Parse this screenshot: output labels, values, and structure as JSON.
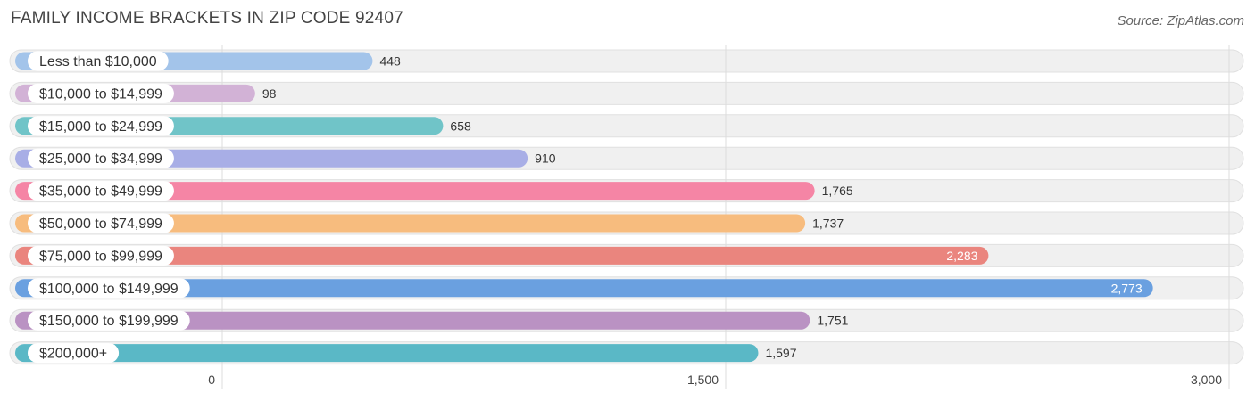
{
  "header": {
    "title": "FAMILY INCOME BRACKETS IN ZIP CODE 92407",
    "source": "Source: ZipAtlas.com"
  },
  "chart_data": {
    "type": "bar",
    "orientation": "horizontal",
    "title": "FAMILY INCOME BRACKETS IN ZIP CODE 92407",
    "xlabel": "",
    "ylabel": "",
    "xlim": [
      0,
      3000
    ],
    "ticks": [
      0,
      1500,
      3000
    ],
    "tick_labels": [
      "0",
      "1,500",
      "3,000"
    ],
    "grid": true,
    "categories": [
      "Less than $10,000",
      "$10,000 to $14,999",
      "$15,000 to $24,999",
      "$25,000 to $34,999",
      "$35,000 to $49,999",
      "$50,000 to $74,999",
      "$75,000 to $99,999",
      "$100,000 to $149,999",
      "$150,000 to $199,999",
      "$200,000+"
    ],
    "values": [
      448,
      98,
      658,
      910,
      1765,
      1737,
      2283,
      2773,
      1751,
      1597
    ],
    "value_labels": [
      "448",
      "98",
      "658",
      "910",
      "1,765",
      "1,737",
      "2,283",
      "2,773",
      "1,751",
      "1,597"
    ],
    "colors": [
      "#a3c4ea",
      "#d2b2d6",
      "#70c4c8",
      "#a8aee6",
      "#f585a5",
      "#f7bc7e",
      "#ea857e",
      "#6aa0e0",
      "#ba92c3",
      "#5ab8c6"
    ],
    "track_color": "#f0f0f0",
    "track_border": "#e0e0e0",
    "grid_color": "#dddddd"
  }
}
